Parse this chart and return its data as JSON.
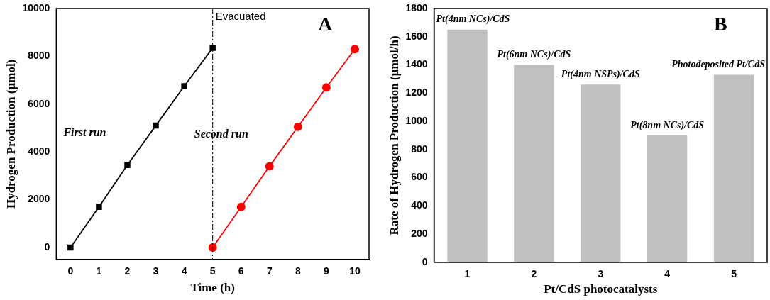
{
  "chart_data": [
    {
      "type": "line",
      "xlabel": "Time (h)",
      "ylabel": "Hydrogen Production (µmol)",
      "xlim": [
        -0.5,
        10.5
      ],
      "ylim": [
        -500,
        10000
      ],
      "xticks": [
        0,
        1,
        2,
        3,
        4,
        5,
        6,
        7,
        8,
        9,
        10
      ],
      "yticks": [
        0,
        2000,
        4000,
        6000,
        8000,
        10000
      ],
      "grid": false,
      "legend": false,
      "line_style": "solid",
      "series": [
        {
          "color": "#000000",
          "marker": "square",
          "x": [
            0,
            1,
            2,
            3,
            4,
            5
          ],
          "values": [
            0,
            1700,
            3450,
            5100,
            6750,
            8350
          ]
        },
        {
          "color": "#ff0000",
          "marker": "circle",
          "x": [
            5,
            6,
            7,
            8,
            9,
            10
          ],
          "values": [
            0,
            1700,
            3400,
            5050,
            6700,
            8300
          ]
        }
      ],
      "ref_lines": [
        {
          "axis": "x",
          "value": 5,
          "label": "Evacuated",
          "color": "#000000",
          "line_style": "dashed"
        }
      ],
      "annotations": [
        "A",
        "First run",
        "Second run"
      ]
    },
    {
      "type": "bar",
      "xlabel": "Pt/CdS photocatalysts",
      "ylabel": "Rate of Hydrogen Production (µmol/h)",
      "categories": [
        "1",
        "2",
        "3",
        "4",
        "5"
      ],
      "values": [
        1650,
        1400,
        1260,
        900,
        1330
      ],
      "color": "#c0c0c0",
      "ylim": [
        0,
        1800
      ],
      "yticks": [
        0,
        200,
        400,
        600,
        800,
        1000,
        1200,
        1400,
        1600,
        1800
      ],
      "grid": false,
      "legend": false,
      "annotations": [
        "B",
        {
          "text": "Pt(4nm NCs)/CdS",
          "x": "1",
          "y": 1650
        },
        {
          "text": "Pt(6nm NCs)/CdS",
          "x": "2",
          "y": 1400
        },
        {
          "text": "Pt(4nm NSPs)/CdS",
          "x": "3",
          "y": 1260
        },
        {
          "text": "Pt(8nm NCs)/CdS",
          "x": "4",
          "y": 900
        },
        {
          "text": "Photodeposited Pt/CdS",
          "x": "5",
          "y": 1330
        }
      ]
    }
  ]
}
